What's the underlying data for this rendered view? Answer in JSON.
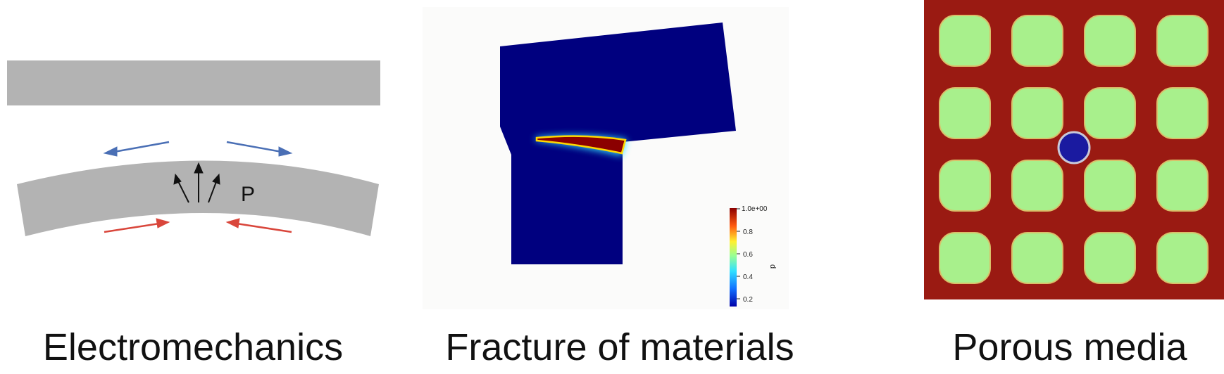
{
  "captions": {
    "electromechanics": "Electromechanics",
    "fracture": "Fracture of materials",
    "porous": "Porous media"
  },
  "electromechanics_panel": {
    "pressure_label": "P",
    "colors": {
      "beam": "#b3b3b3",
      "tension_arrow": "#4a6fb5",
      "compression_arrow": "#d9463b"
    }
  },
  "fracture_panel": {
    "colorbar": {
      "variable": "d",
      "max_label": "1.0e+00",
      "tick_labels": [
        "0.8",
        "0.6",
        "0.4",
        "0.2"
      ]
    },
    "colors": {
      "background_field": "#00007f",
      "crack": "#8b0000"
    }
  },
  "porous_panel": {
    "grid": {
      "rows": 4,
      "cols": 4
    },
    "colors": {
      "matrix": "#9a1a12",
      "pores": "#a8f08c",
      "particle": "#1a1aa0"
    }
  }
}
